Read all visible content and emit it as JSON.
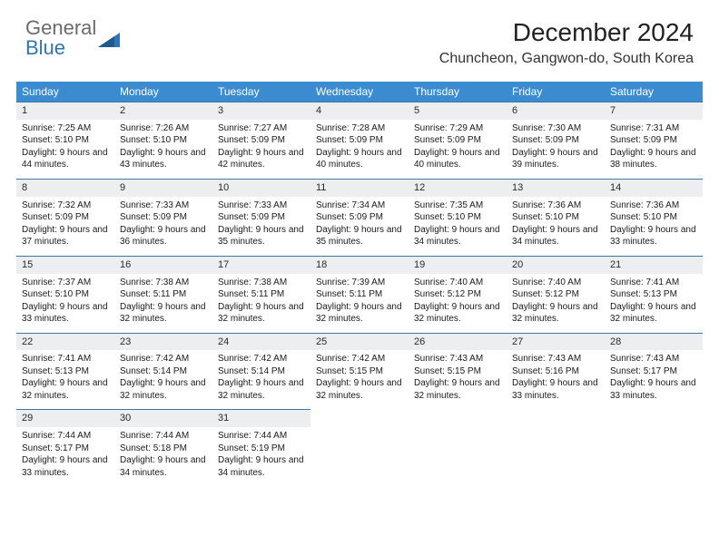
{
  "logo": {
    "line1": "General",
    "line2": "Blue",
    "color_general": "#6b6b6b",
    "color_blue": "#2f75b5",
    "fontsize": 22
  },
  "header": {
    "month_title": "December 2024",
    "location": "Chuncheon, Gangwon-do, South Korea",
    "title_fontsize": 28,
    "location_fontsize": 16
  },
  "styling": {
    "header_bg": "#3b8bd0",
    "header_text": "#ffffff",
    "daynum_bg": "#eceeef",
    "row_border": "#3b78aa",
    "body_text_color": "#1a1a1a",
    "page_bg": "#ffffff",
    "cell_fontsize": 10,
    "daynum_fontsize": 11,
    "header_fontsize": 12
  },
  "day_names": [
    "Sunday",
    "Monday",
    "Tuesday",
    "Wednesday",
    "Thursday",
    "Friday",
    "Saturday"
  ],
  "weeks": [
    [
      {
        "n": "1",
        "sr": "7:25 AM",
        "ss": "5:10 PM",
        "dl": "9 hours and 44 minutes."
      },
      {
        "n": "2",
        "sr": "7:26 AM",
        "ss": "5:10 PM",
        "dl": "9 hours and 43 minutes."
      },
      {
        "n": "3",
        "sr": "7:27 AM",
        "ss": "5:09 PM",
        "dl": "9 hours and 42 minutes."
      },
      {
        "n": "4",
        "sr": "7:28 AM",
        "ss": "5:09 PM",
        "dl": "9 hours and 40 minutes."
      },
      {
        "n": "5",
        "sr": "7:29 AM",
        "ss": "5:09 PM",
        "dl": "9 hours and 40 minutes."
      },
      {
        "n": "6",
        "sr": "7:30 AM",
        "ss": "5:09 PM",
        "dl": "9 hours and 39 minutes."
      },
      {
        "n": "7",
        "sr": "7:31 AM",
        "ss": "5:09 PM",
        "dl": "9 hours and 38 minutes."
      }
    ],
    [
      {
        "n": "8",
        "sr": "7:32 AM",
        "ss": "5:09 PM",
        "dl": "9 hours and 37 minutes."
      },
      {
        "n": "9",
        "sr": "7:33 AM",
        "ss": "5:09 PM",
        "dl": "9 hours and 36 minutes."
      },
      {
        "n": "10",
        "sr": "7:33 AM",
        "ss": "5:09 PM",
        "dl": "9 hours and 35 minutes."
      },
      {
        "n": "11",
        "sr": "7:34 AM",
        "ss": "5:09 PM",
        "dl": "9 hours and 35 minutes."
      },
      {
        "n": "12",
        "sr": "7:35 AM",
        "ss": "5:10 PM",
        "dl": "9 hours and 34 minutes."
      },
      {
        "n": "13",
        "sr": "7:36 AM",
        "ss": "5:10 PM",
        "dl": "9 hours and 34 minutes."
      },
      {
        "n": "14",
        "sr": "7:36 AM",
        "ss": "5:10 PM",
        "dl": "9 hours and 33 minutes."
      }
    ],
    [
      {
        "n": "15",
        "sr": "7:37 AM",
        "ss": "5:10 PM",
        "dl": "9 hours and 33 minutes."
      },
      {
        "n": "16",
        "sr": "7:38 AM",
        "ss": "5:11 PM",
        "dl": "9 hours and 32 minutes."
      },
      {
        "n": "17",
        "sr": "7:38 AM",
        "ss": "5:11 PM",
        "dl": "9 hours and 32 minutes."
      },
      {
        "n": "18",
        "sr": "7:39 AM",
        "ss": "5:11 PM",
        "dl": "9 hours and 32 minutes."
      },
      {
        "n": "19",
        "sr": "7:40 AM",
        "ss": "5:12 PM",
        "dl": "9 hours and 32 minutes."
      },
      {
        "n": "20",
        "sr": "7:40 AM",
        "ss": "5:12 PM",
        "dl": "9 hours and 32 minutes."
      },
      {
        "n": "21",
        "sr": "7:41 AM",
        "ss": "5:13 PM",
        "dl": "9 hours and 32 minutes."
      }
    ],
    [
      {
        "n": "22",
        "sr": "7:41 AM",
        "ss": "5:13 PM",
        "dl": "9 hours and 32 minutes."
      },
      {
        "n": "23",
        "sr": "7:42 AM",
        "ss": "5:14 PM",
        "dl": "9 hours and 32 minutes."
      },
      {
        "n": "24",
        "sr": "7:42 AM",
        "ss": "5:14 PM",
        "dl": "9 hours and 32 minutes."
      },
      {
        "n": "25",
        "sr": "7:42 AM",
        "ss": "5:15 PM",
        "dl": "9 hours and 32 minutes."
      },
      {
        "n": "26",
        "sr": "7:43 AM",
        "ss": "5:15 PM",
        "dl": "9 hours and 32 minutes."
      },
      {
        "n": "27",
        "sr": "7:43 AM",
        "ss": "5:16 PM",
        "dl": "9 hours and 33 minutes."
      },
      {
        "n": "28",
        "sr": "7:43 AM",
        "ss": "5:17 PM",
        "dl": "9 hours and 33 minutes."
      }
    ],
    [
      {
        "n": "29",
        "sr": "7:44 AM",
        "ss": "5:17 PM",
        "dl": "9 hours and 33 minutes."
      },
      {
        "n": "30",
        "sr": "7:44 AM",
        "ss": "5:18 PM",
        "dl": "9 hours and 34 minutes."
      },
      {
        "n": "31",
        "sr": "7:44 AM",
        "ss": "5:19 PM",
        "dl": "9 hours and 34 minutes."
      },
      null,
      null,
      null,
      null
    ]
  ],
  "labels": {
    "sunrise": "Sunrise:",
    "sunset": "Sunset:",
    "daylight": "Daylight:"
  }
}
